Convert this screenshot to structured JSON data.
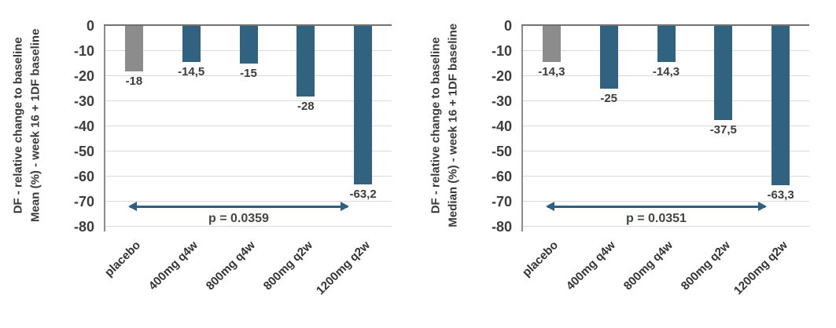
{
  "figure": {
    "description": "Two vertical bar charts comparing DF relative change to baseline at week 16 (+1DF baseline) across dose groups: left panel shows mean (%), right panel shows median (%)."
  },
  "colors": {
    "placebo_bar": "#8c8c8c",
    "treatment_bar": "#31627f",
    "arrow": "#2d5f80",
    "gridline": "#d9d9d9",
    "axis_line": "#737373",
    "text": "#3d3d3d"
  },
  "chart_data": [
    {
      "type": "bar",
      "title": "",
      "ylabel_lines": [
        "DF - relative change to baseline",
        "Mean (%) - week 16 + 1DF baseline"
      ],
      "xlabel": "",
      "categories": [
        "placebo",
        "400mg q4w",
        "800mg q4w",
        "800mg q2w",
        "1200mg q2w"
      ],
      "values": [
        -18,
        -14.5,
        -15,
        -28,
        -63.2
      ],
      "value_labels": [
        "-18",
        "-14,5",
        "-15",
        "-28",
        "-63,2"
      ],
      "bar_colors": [
        "#8c8c8c",
        "#31627f",
        "#31627f",
        "#31627f",
        "#31627f"
      ],
      "ylim": [
        -80,
        0
      ],
      "yticks": [
        0,
        -10,
        -20,
        -30,
        -40,
        -50,
        -60,
        -70,
        -80
      ],
      "grid": true,
      "legend": null,
      "annotation": {
        "text": "p = 0.0359",
        "type": "significance-arrow",
        "from_category": "placebo",
        "to_category": "1200mg q2w",
        "y": -72
      }
    },
    {
      "type": "bar",
      "title": "",
      "ylabel_lines": [
        "DF - relative change to baseline",
        "Median (%) - week 16 + 1DF baseline"
      ],
      "xlabel": "",
      "categories": [
        "placebo",
        "400mg q4w",
        "800mg q4w",
        "800mg q2w",
        "1200mg q2w"
      ],
      "values": [
        -14.3,
        -25,
        -14.3,
        -37.5,
        -63.3
      ],
      "value_labels": [
        "-14,3",
        "-25",
        "-14,3",
        "-37,5",
        "-63,3"
      ],
      "bar_colors": [
        "#8c8c8c",
        "#31627f",
        "#31627f",
        "#31627f",
        "#31627f"
      ],
      "ylim": [
        -80,
        0
      ],
      "yticks": [
        0,
        -10,
        -20,
        -30,
        -40,
        -50,
        -60,
        -70,
        -80
      ],
      "grid": true,
      "legend": null,
      "annotation": {
        "text": "p = 0.0351",
        "type": "significance-arrow",
        "from_category": "placebo",
        "to_category": "1200mg q2w",
        "y": -72
      }
    }
  ]
}
